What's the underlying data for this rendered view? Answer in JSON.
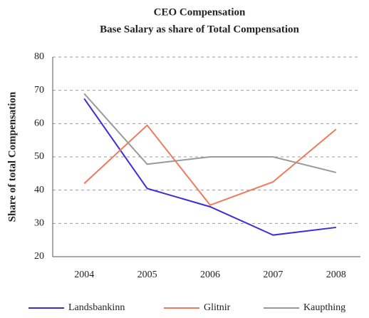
{
  "chart_data": {
    "type": "line",
    "title": "CEO Compensation",
    "subtitle": "Base Salary as share of Total Compensation",
    "y_label": "Share of total Compensation",
    "categories": [
      "2004",
      "2005",
      "2006",
      "2007",
      "2008"
    ],
    "series": [
      {
        "name": "Landsbankinn",
        "color": "#3a2fd6",
        "values": [
          67.5,
          40.5,
          35,
          26.5,
          28.8
        ]
      },
      {
        "name": "Glitnir",
        "color": "#f07a5a",
        "values": [
          42,
          59.5,
          35.5,
          42.5,
          58.3
        ]
      },
      {
        "name": "Kaupthing",
        "color": "#9a9a9a",
        "values": [
          69,
          47.8,
          50,
          50,
          45.3
        ]
      }
    ],
    "ylim": [
      20,
      80
    ],
    "yticks": [
      20,
      30,
      40,
      50,
      60,
      70,
      80
    ],
    "grid": true,
    "legend": "bottom"
  }
}
